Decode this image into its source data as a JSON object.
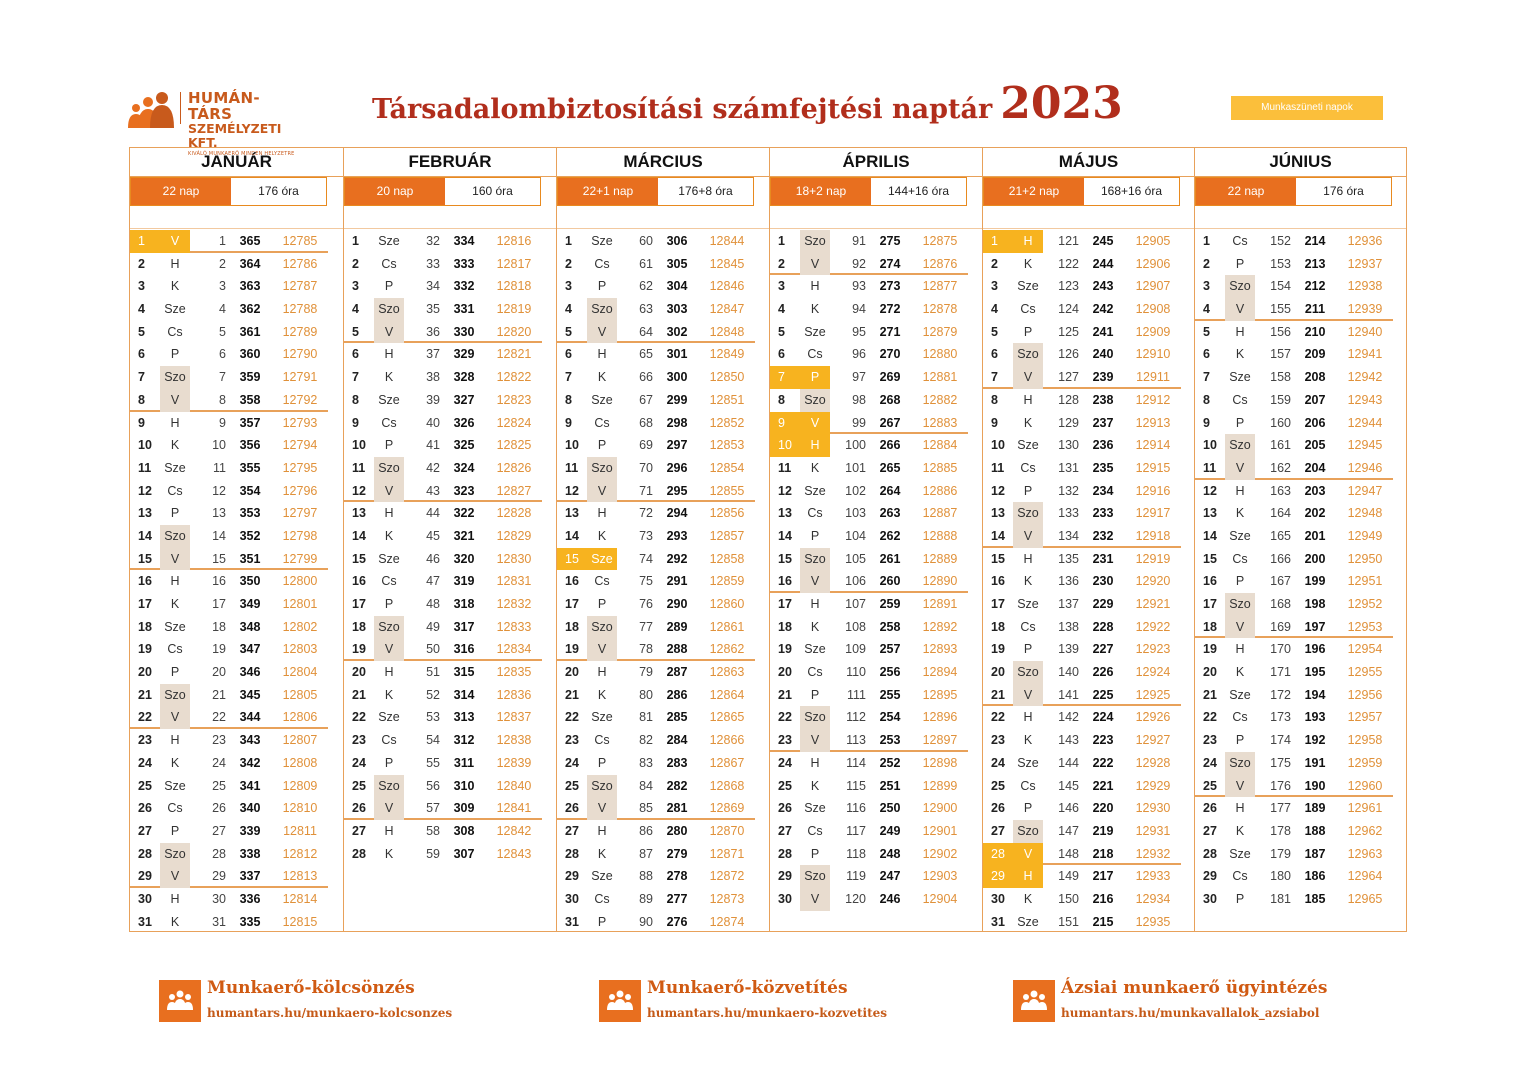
{
  "logo": {
    "line1": "HUMÁN-TÁRS",
    "line2": "SZEMÉLYZETI KFT.",
    "line3": "KIVÁLÓ MUNKAERŐ MINDEN HELYZETRE"
  },
  "title": {
    "text": "Társadalombiztosítási számfejtési naptár",
    "year": "2023"
  },
  "legend": "Munkaszüneti napok",
  "colors": {
    "accent": "#e86f1f",
    "holiday": "#f7b31f",
    "weekend": "#e8dccf",
    "serial": "#e0913a",
    "title": "#b12e1c"
  },
  "months": [
    {
      "name": "JANUÁR",
      "days_label": "22 nap",
      "hours_label": "176 óra",
      "first_dow": 6,
      "days": 31,
      "doy_start": 1,
      "rev_start": 365,
      "serial_start": 12785,
      "holidays": [
        1
      ]
    },
    {
      "name": "FEBRUÁR",
      "days_label": "20 nap",
      "hours_label": "160 óra",
      "first_dow": 2,
      "days": 28,
      "doy_start": 32,
      "rev_start": 334,
      "serial_start": 12816,
      "holidays": []
    },
    {
      "name": "MÁRCIUS",
      "days_label": "22+1 nap",
      "hours_label": "176+8 óra",
      "first_dow": 2,
      "days": 31,
      "doy_start": 60,
      "rev_start": 306,
      "serial_start": 12844,
      "holidays": [
        15
      ]
    },
    {
      "name": "ÁPRILIS",
      "days_label": "18+2 nap",
      "hours_label": "144+16 óra",
      "first_dow": 5,
      "days": 30,
      "doy_start": 91,
      "rev_start": 275,
      "serial_start": 12875,
      "holidays": [
        7,
        9,
        10
      ]
    },
    {
      "name": "MÁJUS",
      "days_label": "21+2 nap",
      "hours_label": "168+16 óra",
      "first_dow": 0,
      "days": 31,
      "doy_start": 121,
      "rev_start": 245,
      "serial_start": 12905,
      "holidays": [
        1,
        28,
        29
      ]
    },
    {
      "name": "JÚNIUS",
      "days_label": "22 nap",
      "hours_label": "176 óra",
      "first_dow": 3,
      "days": 30,
      "doy_start": 152,
      "rev_start": 214,
      "serial_start": 12936,
      "holidays": []
    }
  ],
  "weekday_abbr": [
    "H",
    "K",
    "Sze",
    "Cs",
    "P",
    "Szo",
    "V"
  ],
  "footer": [
    {
      "title": "Munkaerő-kölcsönzés",
      "url": "humantars.hu/munkaero-kolcsonzes"
    },
    {
      "title": "Munkaerő-közvetítés",
      "url": "humantars.hu/munkaero-kozvetites"
    },
    {
      "title": "Ázsiai munkaerő ügyintézés",
      "url": "humantars.hu/munkavallalok_azsiabol"
    }
  ]
}
